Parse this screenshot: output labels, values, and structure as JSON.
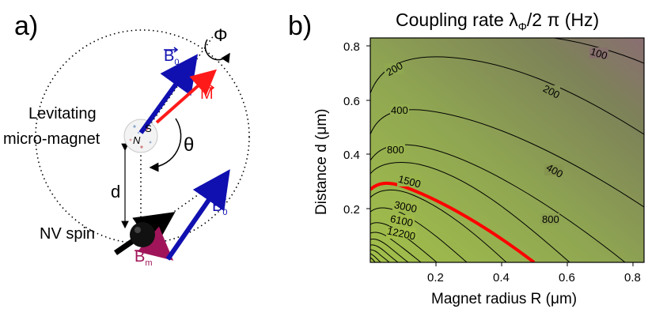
{
  "panel_a": {
    "label": "a)",
    "phi": "Φ",
    "theta": "θ",
    "d": "d",
    "B0_top": "B",
    "B0_top_sub": "0",
    "M": "M",
    "B0_bottom": "B",
    "B0_bottom_sub": "0",
    "Bm": "B",
    "Bm_sub": "m",
    "magnet_label_1": "Levitating",
    "magnet_label_2": "micro-magnet",
    "N": "N",
    "S": "S",
    "nv_label": "NV spin",
    "colors": {
      "blue": "#1010b0",
      "red": "#ff1a1a",
      "purple": "#a0155a",
      "black": "#000000"
    }
  },
  "panel_b": {
    "label": "b)",
    "title": "Coupling rate λ",
    "title_sub": "Φ",
    "title_rest": "/2 π (Hz)",
    "xlabel": "Magnet radius R (μm)",
    "ylabel": "Distance d (μm)",
    "x_ticks": [
      "0.2",
      "0.4",
      "0.6",
      "0.8"
    ],
    "y_ticks": [
      "0.2",
      "0.4",
      "0.6",
      "0.8"
    ],
    "contour_labels": [
      "100",
      "200",
      "200",
      "400",
      "400",
      "800",
      "800",
      "1500",
      "3000",
      "6100",
      "12200"
    ],
    "highlight_color": "#ff0000"
  },
  "chart_data": {
    "type": "heatmap",
    "title": "Coupling rate λΦ/2 π (Hz)",
    "xlabel": "Magnet radius R (μm)",
    "ylabel": "Distance d (μm)",
    "xlim": [
      0.0,
      0.83
    ],
    "ylim": [
      0.0,
      0.83
    ],
    "contour_levels": [
      100,
      200,
      400,
      800,
      1500,
      3000,
      6100,
      12200
    ],
    "highlighted_contour": 1500
  }
}
